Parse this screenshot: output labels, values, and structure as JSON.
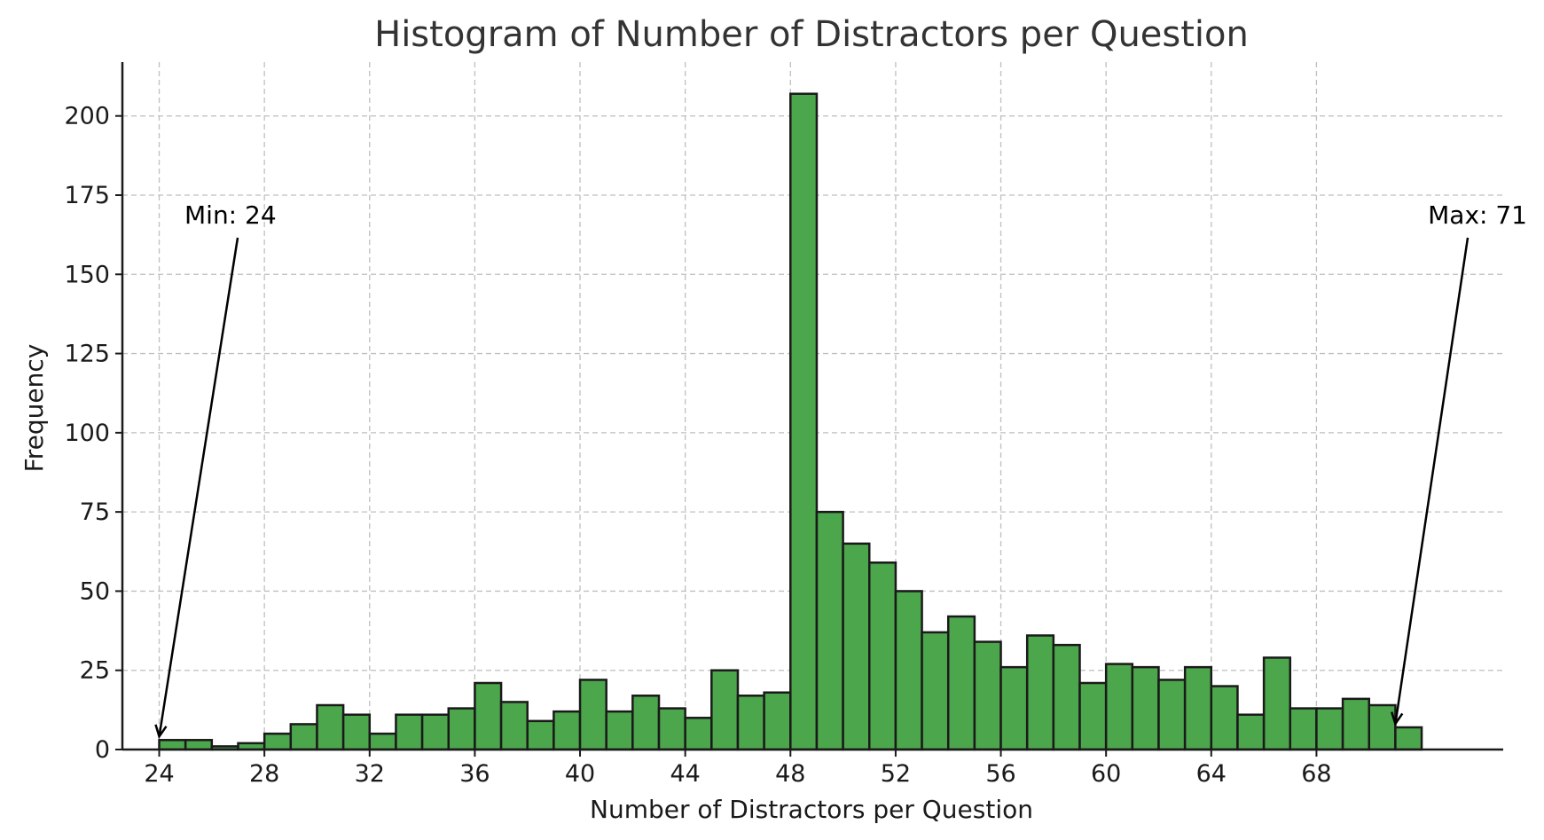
{
  "chart_data": {
    "type": "bar",
    "title": "Histogram of Number of Distractors per Question",
    "xlabel": "Number of Distractors per Question",
    "ylabel": "Frequency",
    "bin_start": 24,
    "bin_width": 1,
    "x": [
      24,
      25,
      26,
      27,
      28,
      29,
      30,
      31,
      32,
      33,
      34,
      35,
      36,
      37,
      38,
      39,
      40,
      41,
      42,
      43,
      44,
      45,
      46,
      47,
      48,
      49,
      50,
      51,
      52,
      53,
      54,
      55,
      56,
      57,
      58,
      59,
      60,
      61,
      62,
      63,
      64,
      65,
      66,
      67,
      68,
      69,
      70,
      71
    ],
    "values": [
      3,
      3,
      1,
      2,
      5,
      8,
      14,
      11,
      5,
      11,
      11,
      13,
      21,
      15,
      9,
      12,
      22,
      12,
      17,
      13,
      10,
      25,
      17,
      18,
      207,
      75,
      65,
      59,
      50,
      37,
      42,
      34,
      26,
      36,
      33,
      21,
      27,
      26,
      22,
      26,
      20,
      11,
      29,
      13,
      13,
      16,
      14,
      7
    ],
    "xlim": [
      22.6,
      75.1
    ],
    "ylim": [
      0,
      217
    ],
    "xticks": [
      24,
      28,
      32,
      36,
      40,
      44,
      48,
      52,
      56,
      60,
      64,
      68
    ],
    "yticks": [
      0,
      25,
      50,
      75,
      100,
      125,
      150,
      175,
      200
    ],
    "grid": true,
    "bar_color": "#4ca64c",
    "edge_color": "#1a1a1a",
    "annotations": [
      {
        "text": "Min: 24",
        "x": 24,
        "y": 3
      },
      {
        "text": "Max: 71",
        "x": 71,
        "y": 7
      }
    ]
  }
}
